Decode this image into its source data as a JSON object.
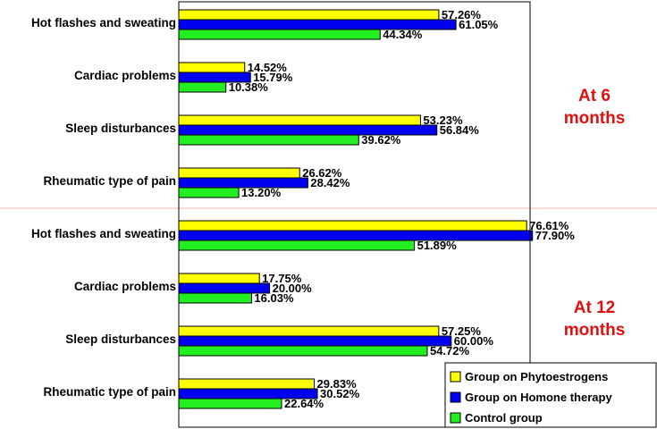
{
  "chart_data": {
    "type": "bar",
    "orientation": "horizontal",
    "xlim": [
      0,
      100
    ],
    "value_suffix": "%",
    "legend": "bottom-right",
    "groups": [
      {
        "label_lines": [
          "At 6",
          "months"
        ],
        "categories": [
          "Hot flashes and sweating",
          "Cardiac problems",
          "Sleep disturbances",
          "Rheumatic type of pain"
        ]
      },
      {
        "label_lines": [
          "At 12",
          "months"
        ],
        "categories": [
          "Hot flashes and sweating",
          "Cardiac problems",
          "Sleep disturbances",
          "Rheumatic type of pain"
        ]
      }
    ],
    "series": [
      {
        "name": "Group on Phytoestrogens",
        "color": "#ffff00",
        "values": [
          [
            57.26,
            14.52,
            53.23,
            26.62
          ],
          [
            76.61,
            17.75,
            57.25,
            29.83
          ]
        ]
      },
      {
        "name": "Group on Homone therapy",
        "color": "#0000ee",
        "values": [
          [
            61.05,
            15.79,
            56.84,
            28.42
          ],
          [
            77.9,
            20.0,
            60.0,
            30.52
          ]
        ]
      },
      {
        "name": "Control group",
        "color": "#22ee22",
        "values": [
          [
            44.34,
            10.38,
            39.62,
            13.2
          ],
          [
            51.89,
            16.03,
            54.72,
            22.64
          ]
        ]
      }
    ]
  }
}
